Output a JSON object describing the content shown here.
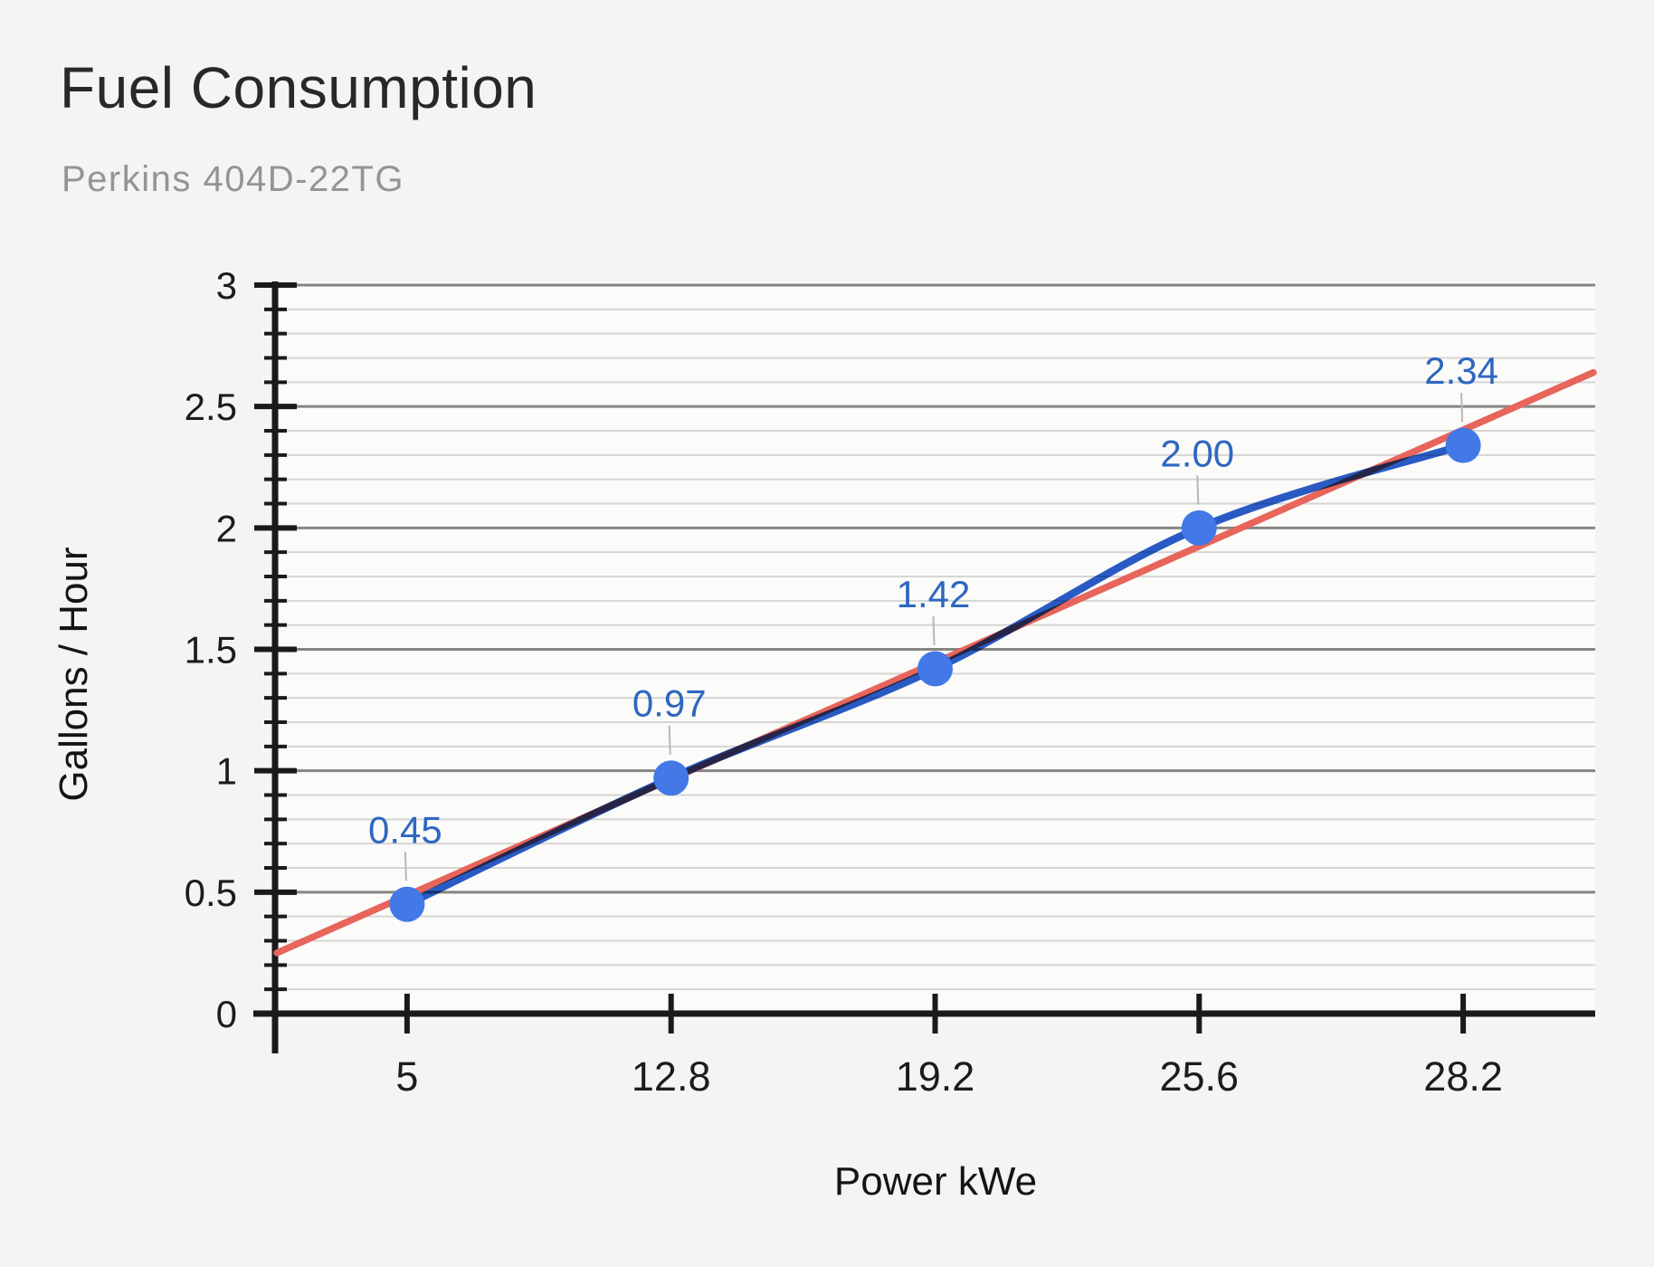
{
  "page": {
    "title": "Fuel Consumption",
    "subtitle": "Perkins 404D-22TG"
  },
  "chart_data": {
    "type": "line",
    "title": "Fuel Consumption",
    "subtitle": "Perkins 404D-22TG",
    "xlabel": "Power kWe",
    "ylabel": "Gallons / Hour",
    "categories": [
      "5",
      "12.8",
      "19.2",
      "25.6",
      "28.2"
    ],
    "series": [
      {
        "name": "Gallons / Hour",
        "values": [
          0.45,
          0.97,
          1.42,
          2.0,
          2.34
        ],
        "point_labels": [
          "0.45",
          "0.97",
          "1.42",
          "2.00",
          "2.34"
        ],
        "smooth": true,
        "line_color": "#2a5cc8",
        "point_color": "#4379e6",
        "label_color": "#2e67c0"
      }
    ],
    "trendline": {
      "color": "#e7655b",
      "value_at_left_edge": 0.25,
      "value_at_right_edge": 2.64
    },
    "y_axis": {
      "min": 0,
      "max": 3,
      "major_step": 0.5,
      "minor_step": 0.1,
      "tick_labels": [
        "0",
        "0.5",
        "1",
        "1.5",
        "2",
        "2.5",
        "3"
      ]
    },
    "x_axis": {
      "tick_labels": [
        "5",
        "12.8",
        "19.2",
        "25.6",
        "28.2"
      ]
    },
    "grid": {
      "major": true,
      "minor": true
    },
    "legend_position": "none",
    "colors": {
      "major_grid": "#878583",
      "minor_grid": "#d7d5d3",
      "axis": "#1a1a1a",
      "callout": "#b9b7b5",
      "plot_background": "#fbfbfa"
    }
  }
}
